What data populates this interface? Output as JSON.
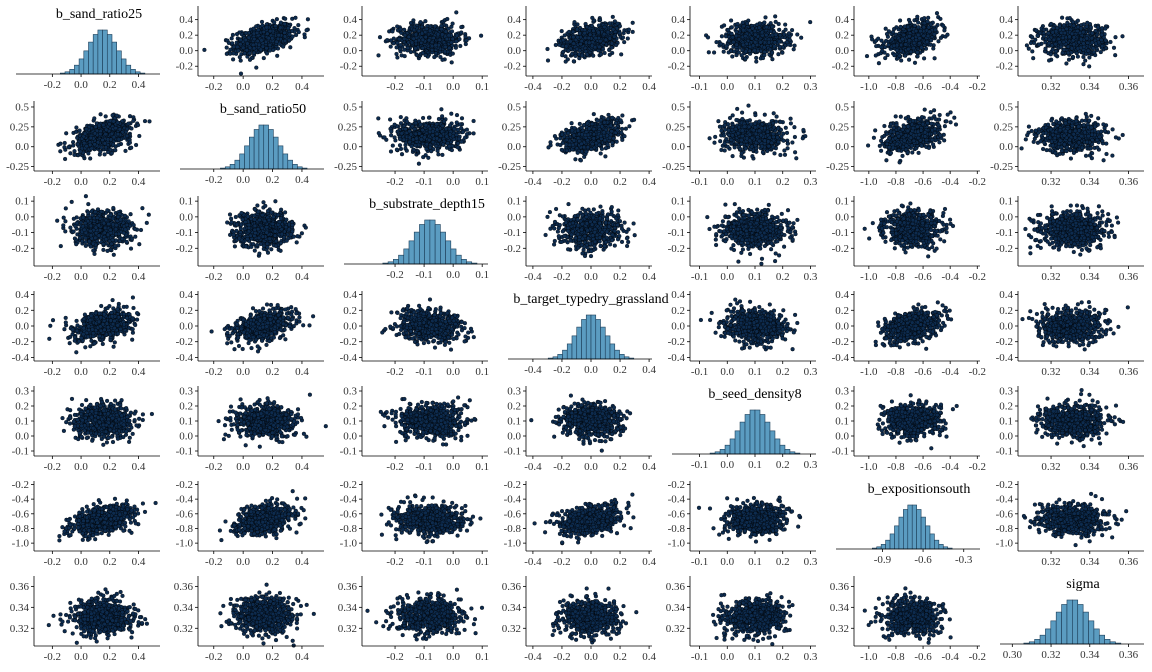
{
  "colors": {
    "point_fill": "#0d2b4e",
    "point_edge": "#000000",
    "bar_fill": "#5b9cc1",
    "bar_edge": "#1b3c57",
    "axis": "#000000"
  },
  "chart_data": {
    "type": "pairs",
    "description_variables_in_order": true,
    "variables": [
      {
        "name": "b_sand_ratio25",
        "mean": 0.15,
        "sd": 0.1,
        "ticks": [
          -0.2,
          0.0,
          0.2,
          0.4
        ],
        "range": [
          -0.3,
          0.55
        ]
      },
      {
        "name": "b_sand_ratio50",
        "mean": 0.14,
        "sd": 0.1,
        "ticks": [
          -0.2,
          0.0,
          0.2,
          0.4
        ],
        "range": [
          -0.28,
          0.55
        ]
      },
      {
        "name": "b_substrate_depth15",
        "mean": -0.08,
        "sd": 0.055,
        "ticks": [
          -0.2,
          -0.1,
          0.0,
          0.1
        ],
        "range": [
          -0.3,
          0.12
        ]
      },
      {
        "name": "b_target_typedry_grassland",
        "mean": 0.0,
        "sd": 0.1,
        "ticks": [
          -0.4,
          -0.2,
          0.0,
          0.2,
          0.4
        ],
        "range": [
          -0.42,
          0.42
        ]
      },
      {
        "name": "b_seed_density8",
        "mean": 0.1,
        "sd": 0.055,
        "ticks": [
          -0.1,
          0.0,
          0.1,
          0.2,
          0.3
        ],
        "range": [
          -0.12,
          0.32
        ]
      },
      {
        "name": "b_expositionsouth",
        "mean": -0.68,
        "sd": 0.1,
        "ticks": [
          -1.0,
          -0.8,
          -0.6,
          -0.4,
          -0.2
        ],
        "range": [
          -1.08,
          -0.18
        ]
      },
      {
        "name": "sigma",
        "mean": 0.331,
        "sd": 0.0085,
        "ticks": [
          0.32,
          0.34,
          0.36
        ],
        "range": [
          0.305,
          0.368
        ]
      }
    ],
    "correlations": [
      [
        1.0,
        0.45,
        0.0,
        0.35,
        0.0,
        0.4,
        0.0
      ],
      [
        0.45,
        1.0,
        0.0,
        0.45,
        0.0,
        0.4,
        0.0
      ],
      [
        0.0,
        0.0,
        1.0,
        0.0,
        0.0,
        0.0,
        0.0
      ],
      [
        0.35,
        0.45,
        0.0,
        1.0,
        -0.1,
        0.4,
        0.0
      ],
      [
        0.0,
        0.0,
        0.0,
        -0.1,
        1.0,
        0.0,
        0.0
      ],
      [
        0.4,
        0.4,
        0.0,
        0.4,
        0.0,
        1.0,
        0.0
      ],
      [
        0.0,
        0.0,
        0.0,
        0.0,
        0.0,
        0.0,
        1.0
      ]
    ],
    "scatter_y_ticks": [
      [
        -0.2,
        0.0,
        0.2,
        0.4
      ],
      [
        0.0,
        0.25,
        0.5,
        -0.25
      ],
      [
        -0.2,
        -0.1,
        0.0,
        0.1
      ],
      [
        -0.4,
        -0.2,
        0.0,
        0.2,
        0.4
      ],
      [
        -0.1,
        0.0,
        0.1,
        0.2,
        0.3
      ],
      [
        -1.0,
        -0.8,
        -0.6,
        -0.4,
        -0.2
      ],
      [
        0.32,
        0.34,
        0.36
      ]
    ],
    "diag_x_ticks": [
      [
        "-0.2",
        "0.0",
        "0.2",
        "0.4"
      ],
      [
        "-0.2",
        "0.0",
        "0.2",
        "0.4"
      ],
      [
        "-0.2",
        "-0.1",
        "0.0",
        "0.1"
      ],
      [
        "-0.4",
        "-0.2",
        "0.0",
        "0.2",
        "0.4"
      ],
      [
        "-0.1",
        "0.0",
        "0.1",
        "0.2",
        "0.3"
      ],
      [
        "-0.9",
        "-0.6",
        "-0.3"
      ],
      [
        "0.30",
        "0.32",
        "0.34",
        "0.36"
      ]
    ],
    "grid": false,
    "legend": "none"
  }
}
